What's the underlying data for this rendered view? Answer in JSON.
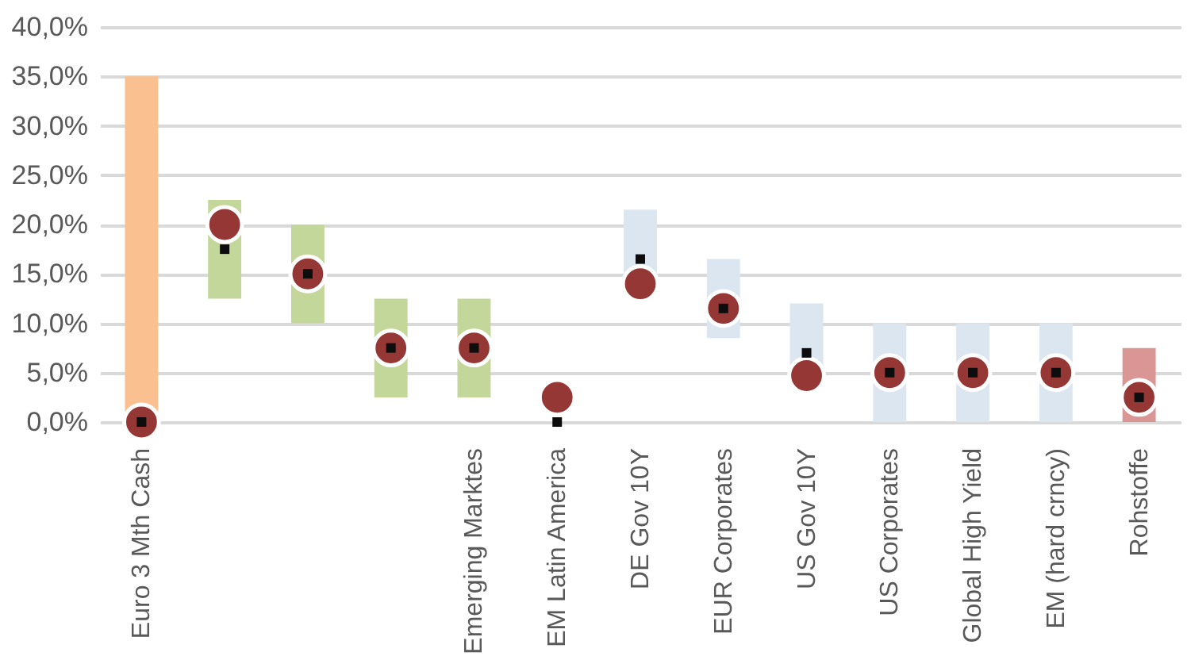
{
  "chart_data": {
    "type": "bar",
    "categories": [
      "Euro 3 Mth Cash",
      null,
      null,
      null,
      "Emerging Marktes",
      "EM Latin America",
      "DE Gov 10Y",
      "EUR Corporates",
      "US Gov 10Y",
      "US Corporates",
      "Global High Yield",
      "EM (hard crncy)",
      "Rohstoffe"
    ],
    "ylim": [
      0,
      40
    ],
    "yticks": [
      {
        "value": 0,
        "label": "0,0%"
      },
      {
        "value": 5,
        "label": "5,0%"
      },
      {
        "value": 10,
        "label": "10,0%"
      },
      {
        "value": 15,
        "label": "15,0%"
      },
      {
        "value": 20,
        "label": "20,0%"
      },
      {
        "value": 25,
        "label": "25,0%"
      },
      {
        "value": 30,
        "label": "30,0%"
      },
      {
        "value": 35,
        "label": "35,0%"
      },
      {
        "value": 40,
        "label": "40,0%"
      }
    ],
    "grid": "y",
    "series": [
      {
        "type": "bar",
        "base": [
          0,
          12.5,
          10,
          2.5,
          2.5,
          null,
          14,
          8.5,
          5,
          0,
          0,
          0,
          0
        ],
        "values": [
          35,
          10,
          10,
          10,
          10,
          null,
          7.5,
          8,
          7,
          10,
          10,
          10,
          7.5
        ],
        "colors": [
          "#fac090",
          "#c4d79b",
          "#c4d79b",
          "#c4d79b",
          "#c4d79b",
          "#c4d79b",
          "#dce6f1",
          "#dce6f1",
          "#dce6f1",
          "#dce6f1",
          "#dce6f1",
          "#dce6f1",
          "#da9694"
        ]
      },
      {
        "type": "scatter",
        "marker": "circle",
        "color": "#953735",
        "values": [
          0,
          20,
          15,
          7.5,
          7.5,
          2.5,
          14,
          11.5,
          4.7,
          5,
          5,
          5,
          2.5
        ]
      },
      {
        "type": "scatter",
        "marker": "square",
        "color": "#0d0d0d",
        "values": [
          0,
          17.5,
          15,
          7.5,
          7.5,
          0,
          16.5,
          11.5,
          7,
          5,
          5,
          5,
          2.5
        ]
      }
    ]
  }
}
